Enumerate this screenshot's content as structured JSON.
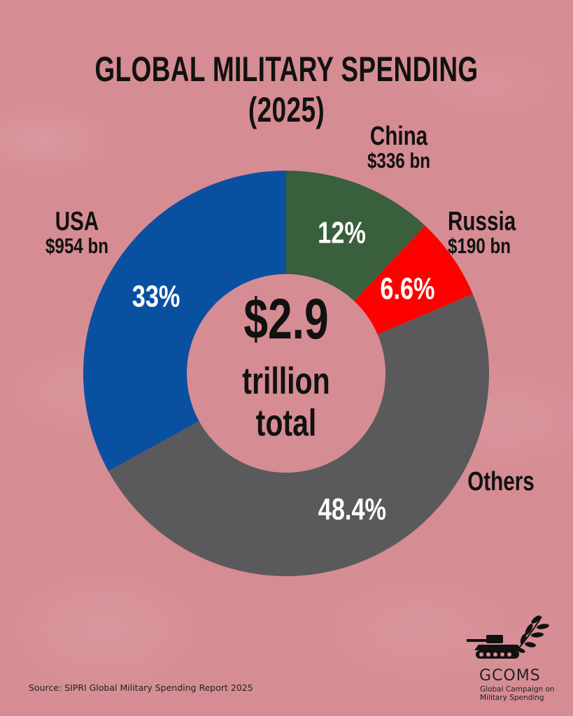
{
  "title": "GLOBAL MILITARY SPENDING (2025)",
  "labels": {
    "china": {
      "name": "China",
      "amount": "$336 bn"
    },
    "usa": {
      "name": "USA",
      "amount": "$954 bn"
    },
    "russia": {
      "name": "Russia",
      "amount": "$190 bn"
    },
    "others": {
      "name": "Others"
    }
  },
  "center": {
    "amount": "$2.9",
    "unit": "trillion",
    "total": "total"
  },
  "source": "Source: SIPRI Global Military Spending Report 2025",
  "logo": {
    "name": "GCOMS",
    "line1": "Global Campaign on",
    "line2": "Military Spending",
    "icon": "tank-with-olive-branch-icon"
  },
  "colors": {
    "background": "#d68c93",
    "usa": "#0a50a1",
    "china": "#3a5f3c",
    "russia": "#ff0000",
    "others": "#5a5a5c"
  },
  "chart_data": {
    "type": "pie",
    "variant": "donut",
    "start": "12 o'clock, clockwise",
    "slices": [
      {
        "name": "China",
        "value": 12,
        "label": "12%",
        "color": "#3a5f3c"
      },
      {
        "name": "Russia",
        "value": 6.6,
        "label": "6.6%",
        "color": "#ff0000"
      },
      {
        "name": "Others",
        "value": 48.4,
        "label": "48.4%",
        "color": "#5a5a5c"
      },
      {
        "name": "USA",
        "value": 33,
        "label": "33%",
        "color": "#0a50a1"
      }
    ]
  }
}
